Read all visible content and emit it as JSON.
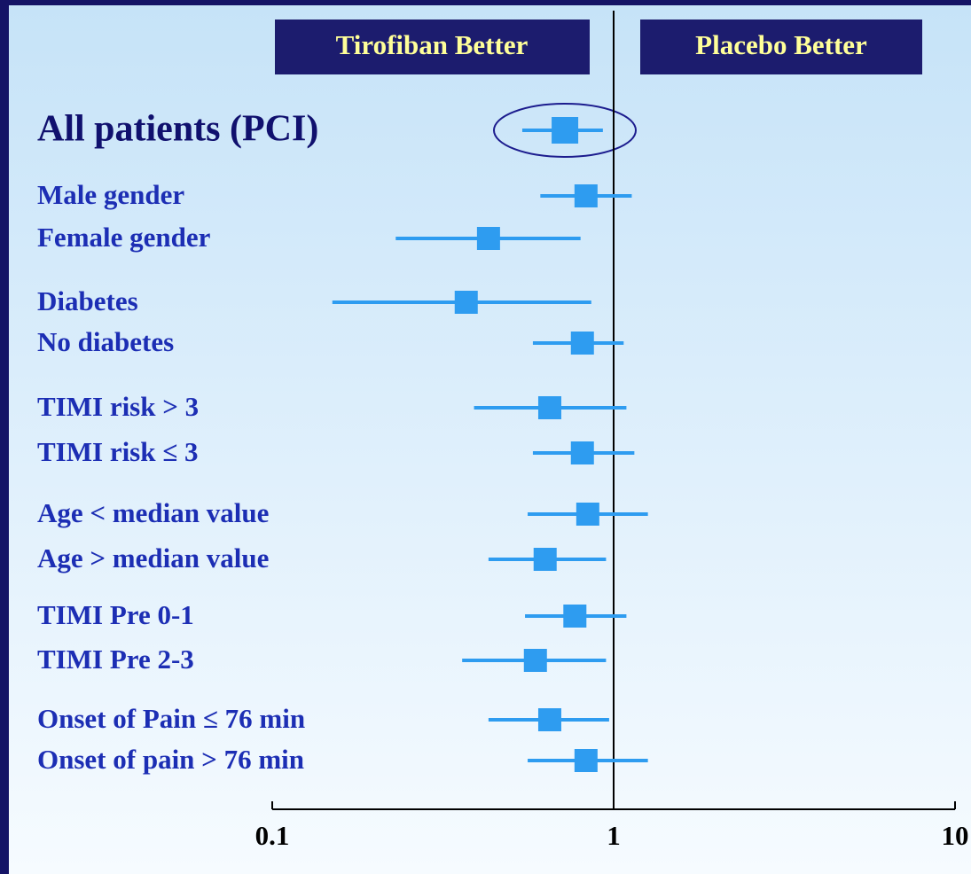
{
  "chart_data": {
    "type": "forest",
    "annotations": [
      "Tirofiban Better",
      "Placebo Better"
    ],
    "categories": [
      "All patients (PCI)",
      "Male gender",
      "Female gender",
      "Diabetes",
      "No diabetes",
      "TIMI risk > 3",
      "TIMI risk ≤ 3",
      "Age < median value",
      "Age > median value",
      "TIMI Pre 0-1",
      "TIMI Pre 2-3",
      "Onset of Pain ≤ 76 min",
      "Onset of pain > 76 min"
    ],
    "values": [
      0.72,
      0.83,
      0.43,
      0.37,
      0.81,
      0.65,
      0.81,
      0.84,
      0.63,
      0.77,
      0.59,
      0.65,
      0.83
    ],
    "lower": [
      0.54,
      0.61,
      0.23,
      0.15,
      0.58,
      0.39,
      0.58,
      0.56,
      0.43,
      0.55,
      0.36,
      0.43,
      0.56
    ],
    "upper": [
      0.93,
      1.13,
      0.8,
      0.86,
      1.07,
      1.09,
      1.15,
      1.26,
      0.95,
      1.09,
      0.95,
      0.97,
      1.26
    ],
    "color": "#2e9cf0",
    "xlim": [
      0.1,
      10
    ],
    "xticks": [
      0.1,
      1,
      10
    ],
    "log_scale": true,
    "reference": 1
  }
}
